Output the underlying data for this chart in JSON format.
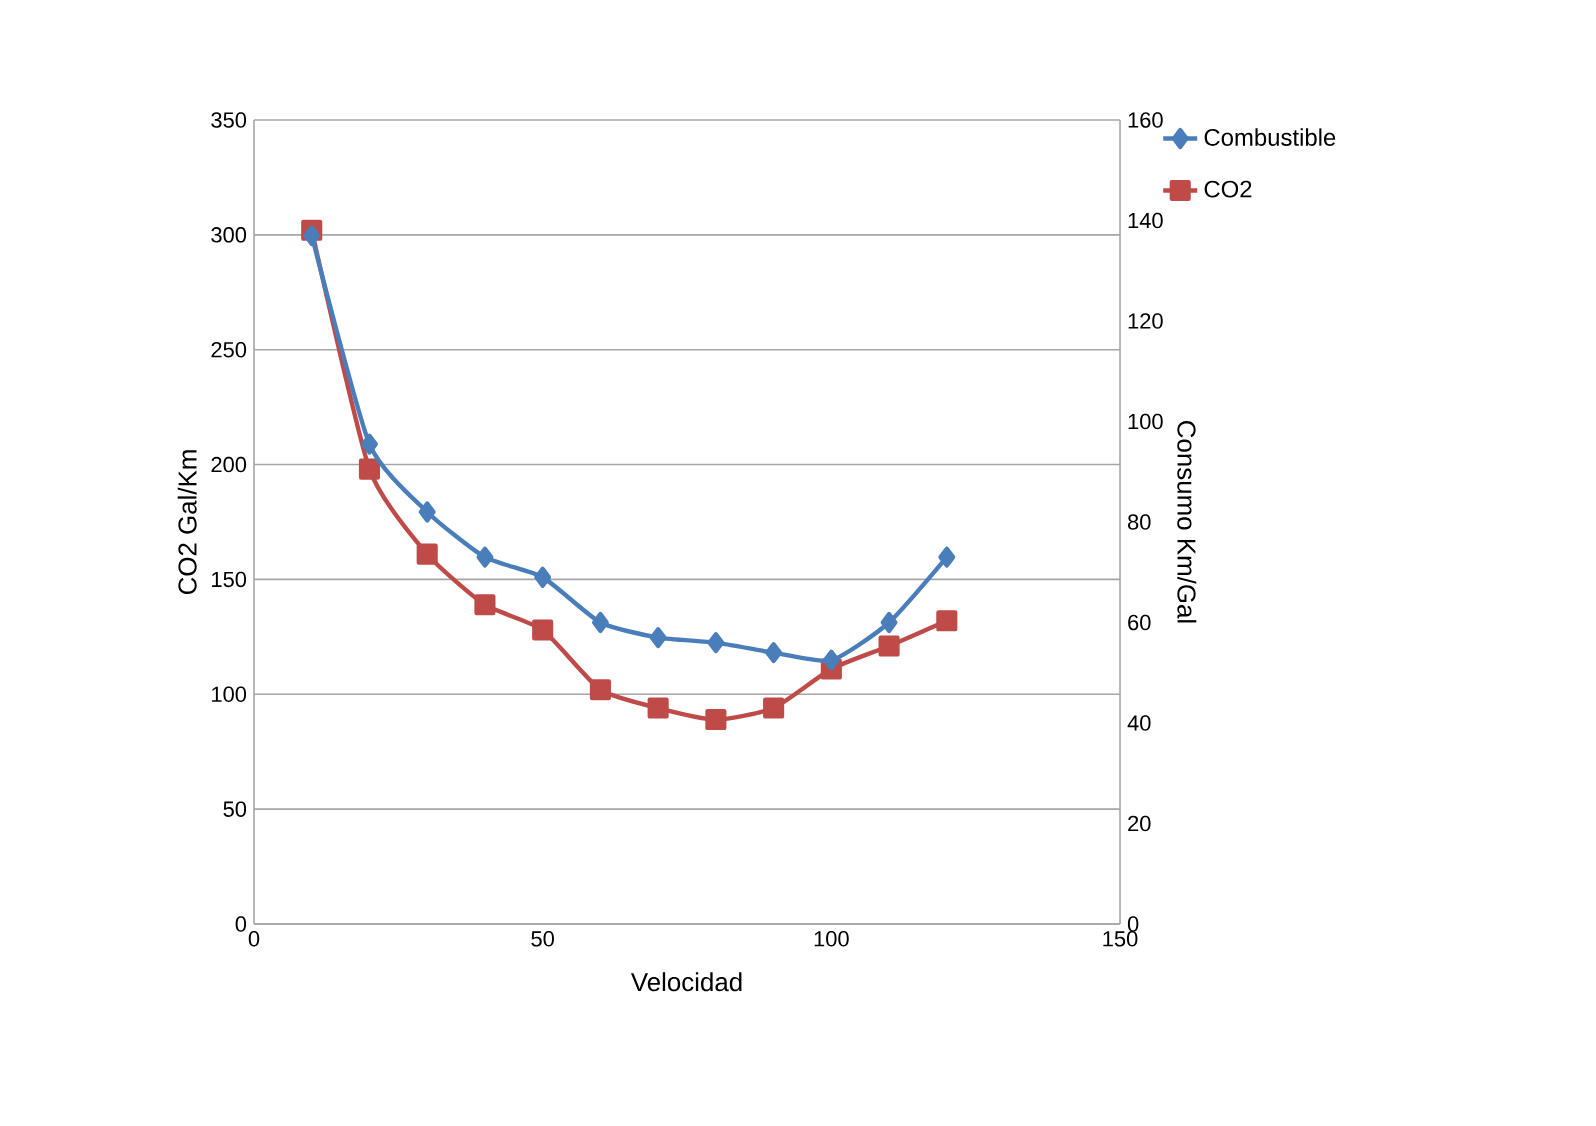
{
  "chart_data": {
    "type": "line",
    "xlabel": "Velocidad",
    "ylabel": "CO2 Gal/Km",
    "y2label": "Consumo Km/Gal",
    "x": [
      10,
      20,
      30,
      40,
      50,
      60,
      70,
      80,
      90,
      100,
      110,
      120
    ],
    "series": [
      {
        "name": "Combustible",
        "color": "#4a7ebb",
        "axis": "y2",
        "marker": "diamond",
        "values": [
          137,
          95.5,
          82,
          73,
          69,
          60,
          57,
          56,
          54,
          52.5,
          60,
          73
        ]
      },
      {
        "name": "CO2",
        "color": "#be4b48",
        "marker": "square",
        "values": [
          302,
          198,
          161,
          139,
          128,
          102,
          94,
          89,
          94,
          111,
          121,
          132
        ]
      }
    ],
    "xlim": [
      0,
      150
    ],
    "xticks": [
      0,
      50,
      100,
      150
    ],
    "ylim": [
      0,
      350
    ],
    "yticks": [
      0,
      50,
      100,
      150,
      200,
      250,
      300,
      350
    ],
    "y2lim": [
      0,
      160
    ],
    "y2ticks": [
      0,
      20,
      40,
      60,
      80,
      100,
      120,
      140,
      160
    ],
    "grid": "y",
    "legend": "top right",
    "line_style": "solid"
  }
}
